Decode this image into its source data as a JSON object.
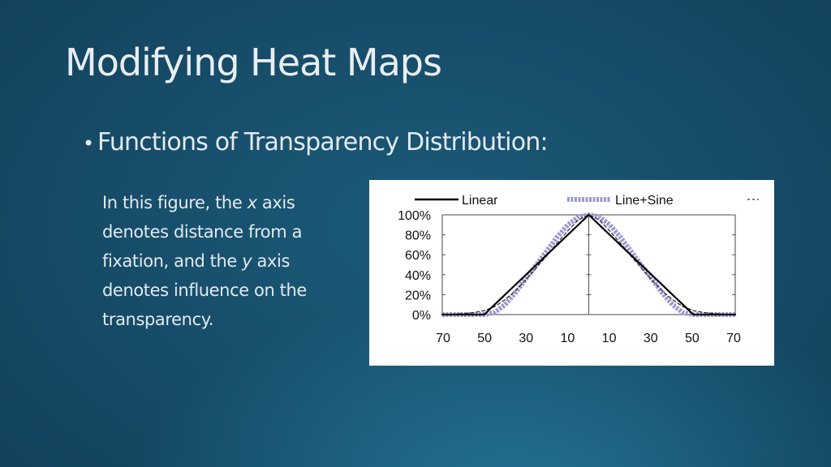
{
  "slide": {
    "title": "Modifying Heat Maps",
    "bullet": "Functions of Transparency Distribution:",
    "description": {
      "part1": "In this figure, the ",
      "x_var": "x",
      "part2": " axis denotes distance from a fixation, and the ",
      "y_var": "y",
      "part3": " axis denotes influence on the transparency."
    }
  },
  "chart_data": {
    "type": "line",
    "title": "",
    "xlabel": "",
    "ylabel": "",
    "x_ticks": [
      "70",
      "50",
      "30",
      "10",
      "10",
      "30",
      "50",
      "70"
    ],
    "y_ticks": [
      "100%",
      "80%",
      "60%",
      "40%",
      "20%",
      "0%"
    ],
    "xlim": [
      -70,
      70
    ],
    "ylim": [
      0,
      100
    ],
    "legend": {
      "placement": "top",
      "entries": [
        "Linear",
        "Line+Sine"
      ]
    },
    "series": [
      {
        "name": "Linear",
        "color": "#000000",
        "style": "solid",
        "x": [
          -70,
          -50,
          0,
          50,
          70
        ],
        "y": [
          0,
          0,
          100,
          0,
          0
        ]
      },
      {
        "name": "Line+Sine",
        "color": "#9a98d0",
        "style": "thick-marker",
        "x": [
          -70,
          -55,
          -50,
          -45,
          -40,
          -35,
          -30,
          -25,
          -20,
          -15,
          -10,
          -5,
          0,
          5,
          10,
          15,
          20,
          25,
          30,
          35,
          40,
          45,
          50,
          55,
          70
        ],
        "y": [
          0,
          0,
          0,
          2,
          10,
          22,
          36,
          50,
          64,
          78,
          90,
          98,
          100,
          98,
          90,
          78,
          64,
          50,
          36,
          22,
          10,
          2,
          0,
          0,
          0
        ]
      },
      {
        "name": "",
        "color": "#222222",
        "style": "dashed",
        "x": [
          -70,
          -60,
          -55,
          -50,
          -45,
          -40,
          -35,
          -30,
          -25,
          -20,
          -15,
          -10,
          -5,
          0,
          5,
          10,
          15,
          20,
          25,
          30,
          35,
          40,
          45,
          50,
          55,
          60,
          70
        ],
        "y": [
          0,
          1,
          2,
          4,
          8,
          15,
          24,
          35,
          47,
          59,
          72,
          84,
          95,
          100,
          95,
          84,
          72,
          59,
          47,
          35,
          24,
          15,
          8,
          4,
          2,
          1,
          0
        ]
      }
    ]
  }
}
